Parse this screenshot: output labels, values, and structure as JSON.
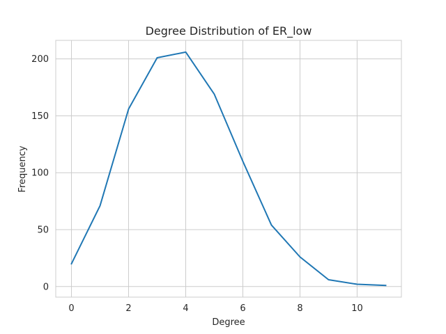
{
  "chart_data": {
    "type": "line",
    "title": "Degree Distribution of ER_low",
    "xlabel": "Degree",
    "ylabel": "Frequency",
    "x": [
      0,
      1,
      2,
      3,
      4,
      5,
      6,
      7,
      8,
      9,
      10,
      11
    ],
    "series": [
      {
        "name": "ER_low",
        "color": "#1f77b4",
        "values": [
          20,
          71,
          156,
          201,
          206,
          169,
          110,
          54,
          26,
          6,
          2,
          1
        ]
      }
    ],
    "xlim": [
      -0.55,
      11.55
    ],
    "ylim": [
      -9.3,
      216.3
    ],
    "xticks": [
      0,
      2,
      4,
      6,
      8,
      10
    ],
    "yticks": [
      0,
      50,
      100,
      150,
      200
    ],
    "grid": true
  }
}
